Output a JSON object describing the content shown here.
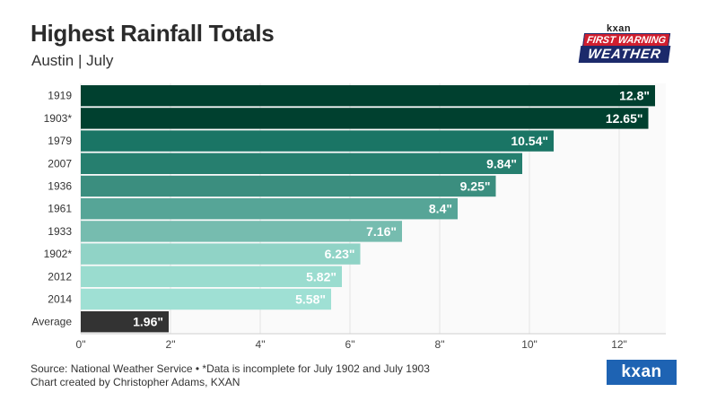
{
  "header": {
    "title": "Highest Rainfall Totals",
    "subtitle": "Austin | July"
  },
  "brand": {
    "small": "kxan",
    "line1": "FIRST WARNING",
    "line2": "WEATHER"
  },
  "footer": {
    "source": "Source: National Weather Service • *Data is incomplete for July 1902 and July 1903",
    "credit": "Chart created by Christopher Adams, KXAN",
    "logo": "kxan"
  },
  "chart_data": {
    "type": "bar",
    "orientation": "horizontal",
    "categories": [
      "1919",
      "1903*",
      "1979",
      "2007",
      "1936",
      "1961",
      "1933",
      "1902*",
      "2012",
      "2014",
      "Average"
    ],
    "values": [
      12.8,
      12.65,
      10.54,
      9.84,
      9.25,
      8.4,
      7.16,
      6.23,
      5.82,
      5.58,
      1.96
    ],
    "value_labels": [
      "12.8\"",
      "12.65\"",
      "10.54\"",
      "9.84\"",
      "9.25\"",
      "8.4\"",
      "7.16\"",
      "6.23\"",
      "5.82\"",
      "5.58\"",
      "1.96\""
    ],
    "colors": [
      "#00402f",
      "#00402f",
      "#1a7565",
      "#267f6f",
      "#3b8e7f",
      "#56a597",
      "#76bcaf",
      "#90d3c6",
      "#9adccf",
      "#9fe0d4",
      "#333333"
    ],
    "label_colors": [
      "#ffffff",
      "#ffffff",
      "#ffffff",
      "#ffffff",
      "#ffffff",
      "#ffffff",
      "#ffffff",
      "#ffffff",
      "#ffffff",
      "#ffffff",
      "#ffffff"
    ],
    "x_ticks": [
      "0\"",
      "2\"",
      "4\"",
      "6\"",
      "8\"",
      "10\"",
      "12\""
    ],
    "x_tick_values": [
      0,
      2,
      4,
      6,
      8,
      10,
      12
    ],
    "xlim": [
      0,
      13
    ],
    "grid": true
  }
}
